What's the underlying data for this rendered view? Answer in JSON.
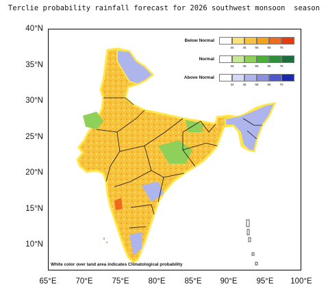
{
  "title": "Terclie probability rainfall forecast for 2026 southwest monsoon  season",
  "y_ticks": [
    "40°N",
    "35°N",
    "30°N",
    "25°N",
    "20°N",
    "15°N",
    "10°N"
  ],
  "x_ticks": [
    "65°E",
    "70°E",
    "75°E",
    "80°E",
    "85°E",
    "90°E",
    "95°E",
    "100°E"
  ],
  "legend": [
    {
      "title": "Below Normal",
      "colors": [
        "#ffffff",
        "#f8e27a",
        "#f7c23c",
        "#f3a21a",
        "#ef6a1c",
        "#e53a12"
      ],
      "ticks": [
        "34",
        "45",
        "55",
        "65",
        "75"
      ]
    },
    {
      "title": "Normal",
      "colors": [
        "#ffffff",
        "#c7e89a",
        "#8fd05a",
        "#4caf3b",
        "#2f8e3a",
        "#1d6e3a"
      ],
      "ticks": [
        "34",
        "45",
        "55",
        "65",
        "75"
      ]
    },
    {
      "title": "Above Normal",
      "colors": [
        "#ffffff",
        "#d6d9f5",
        "#aeb4ec",
        "#8a8fe2",
        "#4f57d0",
        "#1a2aae"
      ],
      "ticks": [
        "34",
        "45",
        "55",
        "65",
        "75"
      ]
    }
  ],
  "note": "White color over land area indicates Climatological probability",
  "colors": {
    "below_normal_main": "#f7c23c",
    "below_normal_strong": "#ef6a1c",
    "normal": "#8fd05a",
    "above_normal": "#aeb4ec",
    "above_normal_strong": "#4f57d0",
    "outline": "#111111",
    "coast_glow": "#ffe74a"
  }
}
